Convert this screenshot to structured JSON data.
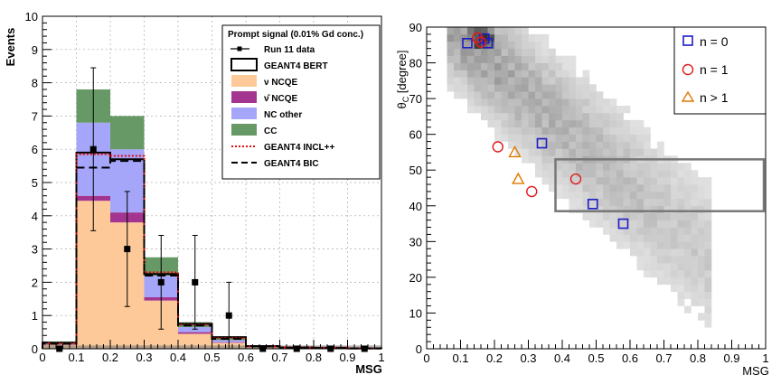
{
  "chart_data": [
    {
      "type": "bar",
      "subtype": "stacked-histogram",
      "xlabel": "MSG",
      "ylabel": "Events",
      "xlim": [
        0,
        1
      ],
      "ylim": [
        0,
        10
      ],
      "x_ticks": [
        "0",
        "0.1",
        "0.2",
        "0.3",
        "0.4",
        "0.5",
        "0.6",
        "0.7",
        "0.8",
        "0.9",
        "1"
      ],
      "y_ticks": [
        "0",
        "1",
        "2",
        "3",
        "4",
        "5",
        "6",
        "7",
        "8",
        "9",
        "10"
      ],
      "bin_edges": [
        0,
        0.1,
        0.2,
        0.3,
        0.4,
        0.5,
        0.6,
        0.7,
        0.8,
        0.9,
        1.0
      ],
      "legend_title": "Prompt signal (0.01% Gd conc.)",
      "stack": [
        {
          "name": "ν NCQE",
          "color": "#fdc998",
          "values": [
            0.12,
            4.45,
            3.8,
            1.45,
            0.45,
            0.18,
            0.05,
            0.03,
            0.02,
            0.01
          ]
        },
        {
          "name": "ν̄ NCQE",
          "color": "#a3348f",
          "values": [
            0.02,
            0.15,
            0.3,
            0.1,
            0.05,
            0.02,
            0.01,
            0.0,
            0.0,
            0.0
          ]
        },
        {
          "name": "NC other",
          "color": "#a5a5f9",
          "values": [
            0.06,
            2.2,
            1.9,
            0.65,
            0.15,
            0.06,
            0.02,
            0.01,
            0.01,
            0.0
          ]
        },
        {
          "name": "CC",
          "color": "#669966",
          "values": [
            0.02,
            1.0,
            1.0,
            0.55,
            0.15,
            0.09,
            0.0,
            0.0,
            0.0,
            0.0
          ]
        }
      ],
      "geant4_bert": {
        "name": "GEANT4 BERT",
        "values": [
          0.18,
          5.9,
          5.7,
          2.25,
          0.75,
          0.35,
          0.08,
          0.04,
          0.03,
          0.01
        ]
      },
      "geant4_incl": {
        "name": "GEANT4 INCL++",
        "values": [
          0.16,
          5.85,
          5.8,
          2.3,
          0.72,
          0.32,
          0.07,
          0.04,
          0.03,
          0.01
        ]
      },
      "geant4_bic": {
        "name": "GEANT4 BIC",
        "values": [
          0.15,
          5.45,
          5.65,
          2.2,
          0.7,
          0.3,
          0.07,
          0.03,
          0.02,
          0.01
        ]
      },
      "data": {
        "name": "Run 11 data",
        "x": [
          0.05,
          0.15,
          0.25,
          0.35,
          0.45,
          0.55,
          0.65,
          0.75,
          0.85,
          0.95
        ],
        "y": [
          0,
          6,
          3,
          2,
          2,
          1,
          0,
          0,
          0,
          0
        ],
        "err": [
          0,
          2.45,
          1.73,
          1.41,
          1.41,
          1.0,
          0,
          0,
          0,
          0
        ]
      }
    },
    {
      "type": "heatmap",
      "subtype": "2d-histogram-with-markers",
      "xlabel": "MSG",
      "ylabel": "θ_C [degree]",
      "ylabel_main": "θ",
      "ylabel_sub": "C",
      "ylabel_rest": " [degree]",
      "xlim": [
        0,
        1
      ],
      "ylim": [
        0,
        90
      ],
      "x_ticks": [
        "0",
        "0.1",
        "0.2",
        "0.3",
        "0.4",
        "0.5",
        "0.6",
        "0.7",
        "0.8",
        "0.9",
        "1"
      ],
      "y_ticks": [
        "0",
        "10",
        "20",
        "30",
        "40",
        "50",
        "60",
        "70",
        "80",
        "90"
      ],
      "cut_box": {
        "x": [
          0.38,
          1.0
        ],
        "y": [
          38.5,
          53
        ]
      },
      "legend": [
        {
          "name": "n = 0",
          "marker": "square",
          "color": "#1c1cc8"
        },
        {
          "name": "n = 1",
          "marker": "circle",
          "color": "#e01a1a"
        },
        {
          "name": "n > 1",
          "marker": "triangle",
          "color": "#e07800"
        }
      ],
      "markers": {
        "n = 0": {
          "x": [
            0.12,
            0.17,
            0.18,
            0.34,
            0.49,
            0.58
          ],
          "y": [
            85.5,
            86.8,
            85.5,
            57.5,
            40.5,
            35.0
          ]
        },
        "n = 1": {
          "x": [
            0.15,
            0.16,
            0.21,
            0.31,
            0.44
          ],
          "y": [
            87.0,
            85.8,
            56.5,
            44.0,
            47.5
          ]
        },
        "n > 1": {
          "x": [
            0.26,
            0.27
          ],
          "y": [
            55.0,
            47.5
          ]
        }
      }
    }
  ]
}
